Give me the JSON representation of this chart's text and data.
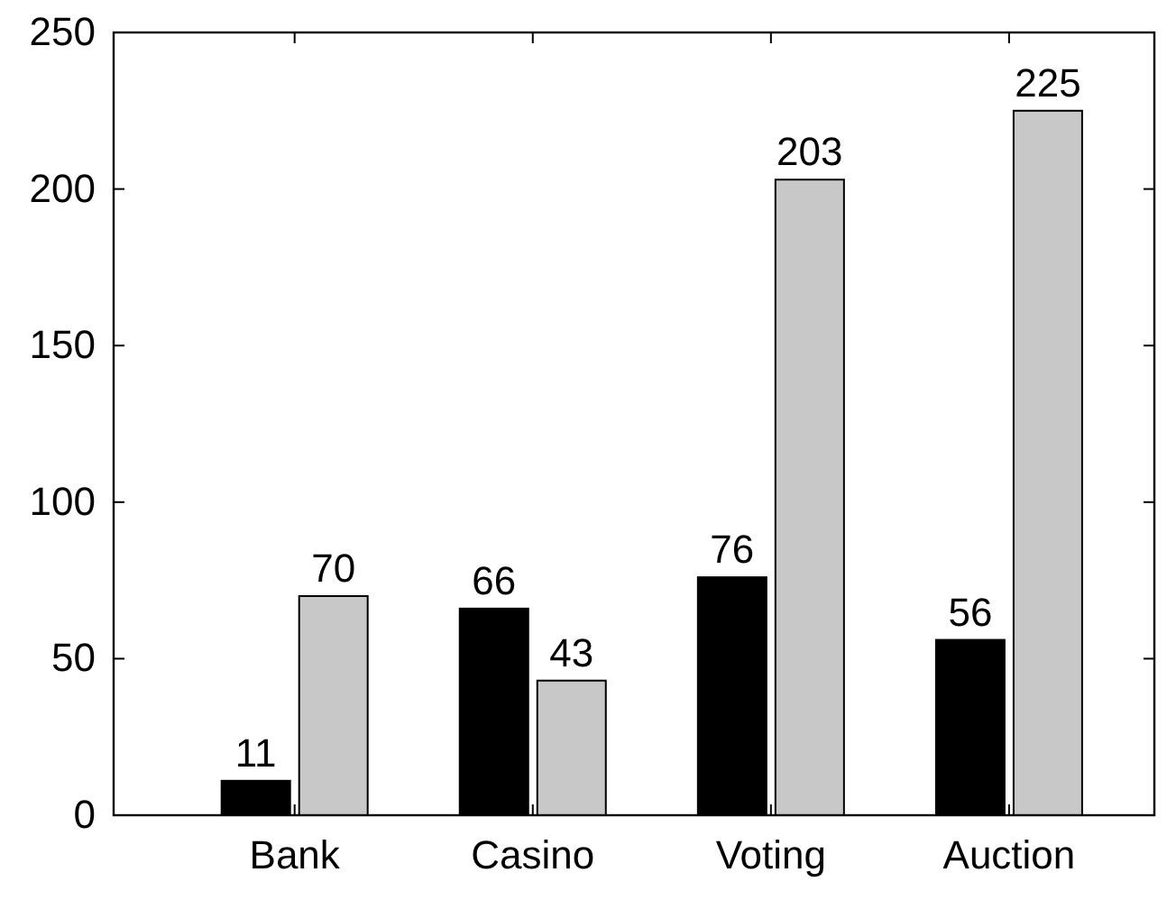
{
  "chart_data": {
    "type": "bar",
    "categories": [
      "Bank",
      "Casino",
      "Voting",
      "Auction"
    ],
    "series": [
      {
        "color": "#000000",
        "values": [
          11,
          66,
          76,
          56
        ]
      },
      {
        "color": "#c8c8c8",
        "values": [
          70,
          43,
          203,
          225
        ]
      }
    ],
    "ylim": [
      0,
      250
    ],
    "yticks": [
      0,
      50,
      100,
      150,
      200,
      250
    ],
    "data_labels": true,
    "grid": false
  }
}
